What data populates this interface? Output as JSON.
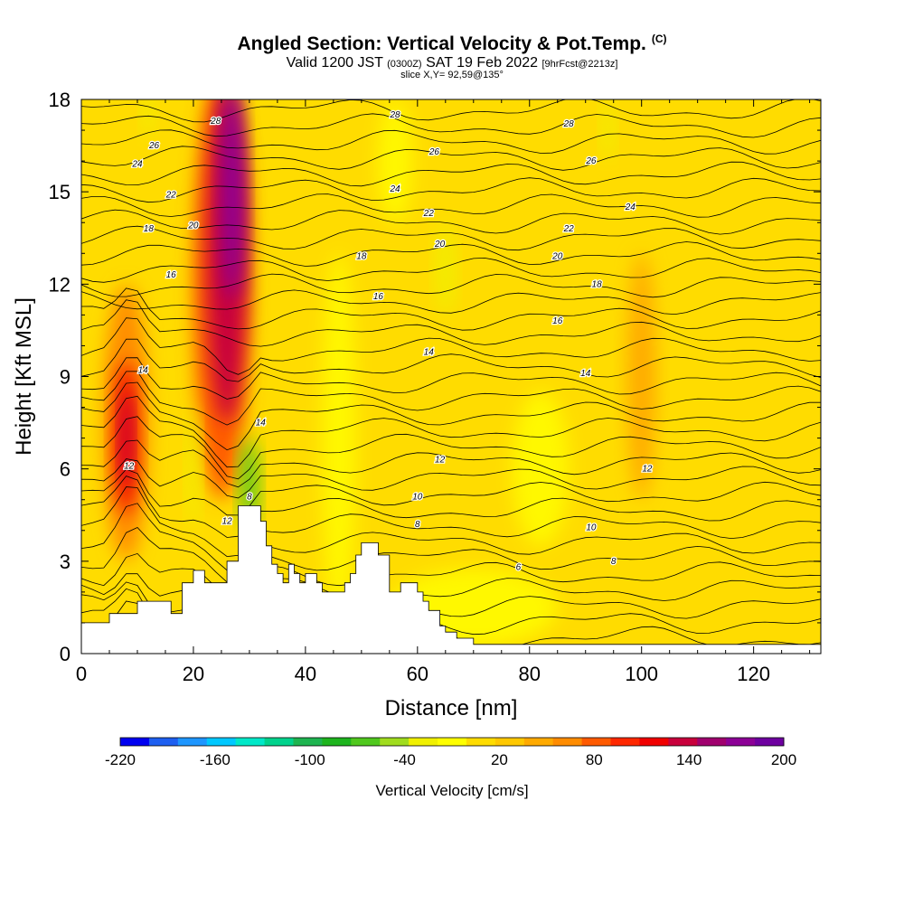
{
  "header": {
    "title": "Angled Section: Vertical Velocity & Pot.Temp.",
    "title_unit": "(C)",
    "valid_prefix": "Valid 1200 JST",
    "valid_zulu": "(0300Z)",
    "valid_date": "SAT 19 Feb 2022",
    "forecast": "[9hrFcst@2213z]",
    "slice": "slice X,Y= 92,59@135°"
  },
  "chart_data": {
    "type": "heatmap",
    "xlabel": "Distance [nm]",
    "ylabel": "Height [Kft MSL]",
    "xlim": [
      0,
      132
    ],
    "ylim": [
      0,
      18
    ],
    "x_ticks": [
      "0",
      "20",
      "40",
      "60",
      "80",
      "100",
      "120"
    ],
    "y_ticks": [
      "0",
      "3",
      "6",
      "9",
      "12",
      "15",
      "18"
    ],
    "colorbar": {
      "label": "Vertical Velocity [cm/s]",
      "ticks": [
        "-220",
        "-160",
        "-100",
        "-40",
        "20",
        "80",
        "140",
        "200"
      ],
      "range": [
        -220,
        200
      ],
      "colors": [
        "#0000f0",
        "#1e5ff0",
        "#1e96ff",
        "#00c8ff",
        "#00e8c8",
        "#00d28c",
        "#1eb450",
        "#1eb41e",
        "#50c81e",
        "#a0dc1e",
        "#f0f000",
        "#ffff00",
        "#ffdc00",
        "#ffc800",
        "#ffaa00",
        "#ff8c00",
        "#ff5a00",
        "#ff2800",
        "#f00000",
        "#c8003c",
        "#a0006e",
        "#8c0096",
        "#6e00a0"
      ]
    },
    "velocity_regions": [
      {
        "x": 8,
        "y": 7.5,
        "w": 8,
        "h": 9,
        "value": 60
      },
      {
        "x": 8,
        "y": 7.0,
        "w": 4,
        "h": 5,
        "value": 110
      },
      {
        "x": 8,
        "y": 7.0,
        "w": 2,
        "h": 3,
        "value": 140
      },
      {
        "x": 25,
        "y": 12,
        "w": 10,
        "h": 14,
        "value": 80
      },
      {
        "x": 26,
        "y": 13,
        "w": 7,
        "h": 11,
        "value": 130
      },
      {
        "x": 27,
        "y": 15,
        "w": 4,
        "h": 7,
        "value": 180
      },
      {
        "x": 100,
        "y": 9,
        "w": 5,
        "h": 8,
        "value": 50
      },
      {
        "x": 30,
        "y": 5.5,
        "w": 3,
        "h": 3,
        "value": -60
      },
      {
        "x": 65,
        "y": 12.5,
        "w": 3,
        "h": 3,
        "value": -30
      },
      {
        "x": 94,
        "y": 17,
        "w": 2,
        "h": 2,
        "value": -30
      },
      {
        "x": 12,
        "y": 17.5,
        "w": 2,
        "h": 1.5,
        "value": -30
      },
      {
        "x": 20,
        "y": 6,
        "w": 2,
        "h": 4,
        "value": -30
      }
    ],
    "terrain": [
      [
        0,
        1
      ],
      [
        5,
        1
      ],
      [
        5,
        1.3
      ],
      [
        10,
        1.3
      ],
      [
        10,
        1.7
      ],
      [
        16,
        1.7
      ],
      [
        16,
        1.3
      ],
      [
        18,
        1.3
      ],
      [
        18,
        2.3
      ],
      [
        20,
        2.3
      ],
      [
        20,
        2.7
      ],
      [
        22,
        2.7
      ],
      [
        22,
        2.3
      ],
      [
        26,
        2.3
      ],
      [
        26,
        3.0
      ],
      [
        28,
        3.0
      ],
      [
        28,
        4.8
      ],
      [
        32,
        4.8
      ],
      [
        32,
        4.3
      ],
      [
        33,
        4.3
      ],
      [
        33,
        3.5
      ],
      [
        34,
        3.5
      ],
      [
        34,
        2.9
      ],
      [
        35,
        2.9
      ],
      [
        35,
        2.6
      ],
      [
        36,
        2.6
      ],
      [
        36,
        2.3
      ],
      [
        37,
        2.3
      ],
      [
        37,
        2.9
      ],
      [
        38,
        2.9
      ],
      [
        38,
        2.6
      ],
      [
        39,
        2.6
      ],
      [
        39,
        2.3
      ],
      [
        40,
        2.3
      ],
      [
        40,
        2.6
      ],
      [
        42,
        2.6
      ],
      [
        42,
        2.3
      ],
      [
        43,
        2.3
      ],
      [
        43,
        2.0
      ],
      [
        47,
        2.0
      ],
      [
        47,
        2.3
      ],
      [
        48,
        2.3
      ],
      [
        48,
        2.6
      ],
      [
        49,
        2.6
      ],
      [
        49,
        3.2
      ],
      [
        50,
        3.2
      ],
      [
        50,
        3.6
      ],
      [
        53,
        3.6
      ],
      [
        53,
        3.2
      ],
      [
        55,
        3.2
      ],
      [
        55,
        2.0
      ],
      [
        57,
        2.0
      ],
      [
        57,
        2.3
      ],
      [
        60,
        2.3
      ],
      [
        60,
        2.0
      ],
      [
        61,
        2.0
      ],
      [
        61,
        1.7
      ],
      [
        62,
        1.7
      ],
      [
        62,
        1.4
      ],
      [
        64,
        1.4
      ],
      [
        64,
        0.9
      ],
      [
        65,
        0.9
      ],
      [
        65,
        0.7
      ],
      [
        67,
        0.7
      ],
      [
        67,
        0.5
      ],
      [
        70,
        0.5
      ],
      [
        70,
        0.3
      ],
      [
        132,
        0.3
      ]
    ],
    "isentrope_levels": [
      "2",
      "4",
      "6",
      "8",
      "10",
      "12",
      "14",
      "16",
      "18",
      "20",
      "22",
      "24",
      "26",
      "28"
    ],
    "isotherm_labels": [
      {
        "x": 24,
        "y": 17.3,
        "text": "28"
      },
      {
        "x": 13,
        "y": 16.5,
        "text": "26"
      },
      {
        "x": 10,
        "y": 15.9,
        "text": "24"
      },
      {
        "x": 16,
        "y": 14.9,
        "text": "22"
      },
      {
        "x": 20,
        "y": 13.9,
        "text": "20"
      },
      {
        "x": 12,
        "y": 13.8,
        "text": "18"
      },
      {
        "x": 16,
        "y": 12.3,
        "text": "16"
      },
      {
        "x": 11,
        "y": 9.2,
        "text": "14"
      },
      {
        "x": 8.5,
        "y": 6.1,
        "text": "12"
      },
      {
        "x": 32,
        "y": 7.5,
        "text": "14"
      },
      {
        "x": 30,
        "y": 5.1,
        "text": "8"
      },
      {
        "x": 26,
        "y": 4.3,
        "text": "12"
      },
      {
        "x": 56,
        "y": 17.5,
        "text": "28"
      },
      {
        "x": 63,
        "y": 16.3,
        "text": "26"
      },
      {
        "x": 56,
        "y": 15.1,
        "text": "24"
      },
      {
        "x": 62,
        "y": 14.3,
        "text": "22"
      },
      {
        "x": 64,
        "y": 13.3,
        "text": "20"
      },
      {
        "x": 50,
        "y": 12.9,
        "text": "18"
      },
      {
        "x": 53,
        "y": 11.6,
        "text": "16"
      },
      {
        "x": 62,
        "y": 9.8,
        "text": "14"
      },
      {
        "x": 64,
        "y": 6.3,
        "text": "12"
      },
      {
        "x": 60,
        "y": 5.1,
        "text": "10"
      },
      {
        "x": 60,
        "y": 4.2,
        "text": "8"
      },
      {
        "x": 87,
        "y": 17.2,
        "text": "28"
      },
      {
        "x": 91,
        "y": 16.0,
        "text": "26"
      },
      {
        "x": 98,
        "y": 14.5,
        "text": "24"
      },
      {
        "x": 87,
        "y": 13.8,
        "text": "22"
      },
      {
        "x": 85,
        "y": 12.9,
        "text": "20"
      },
      {
        "x": 92,
        "y": 12.0,
        "text": "18"
      },
      {
        "x": 85,
        "y": 10.8,
        "text": "16"
      },
      {
        "x": 90,
        "y": 9.1,
        "text": "14"
      },
      {
        "x": 101,
        "y": 6.0,
        "text": "12"
      },
      {
        "x": 91,
        "y": 4.1,
        "text": "10"
      },
      {
        "x": 95,
        "y": 3.0,
        "text": "8"
      },
      {
        "x": 78,
        "y": 2.8,
        "text": "6"
      }
    ]
  }
}
